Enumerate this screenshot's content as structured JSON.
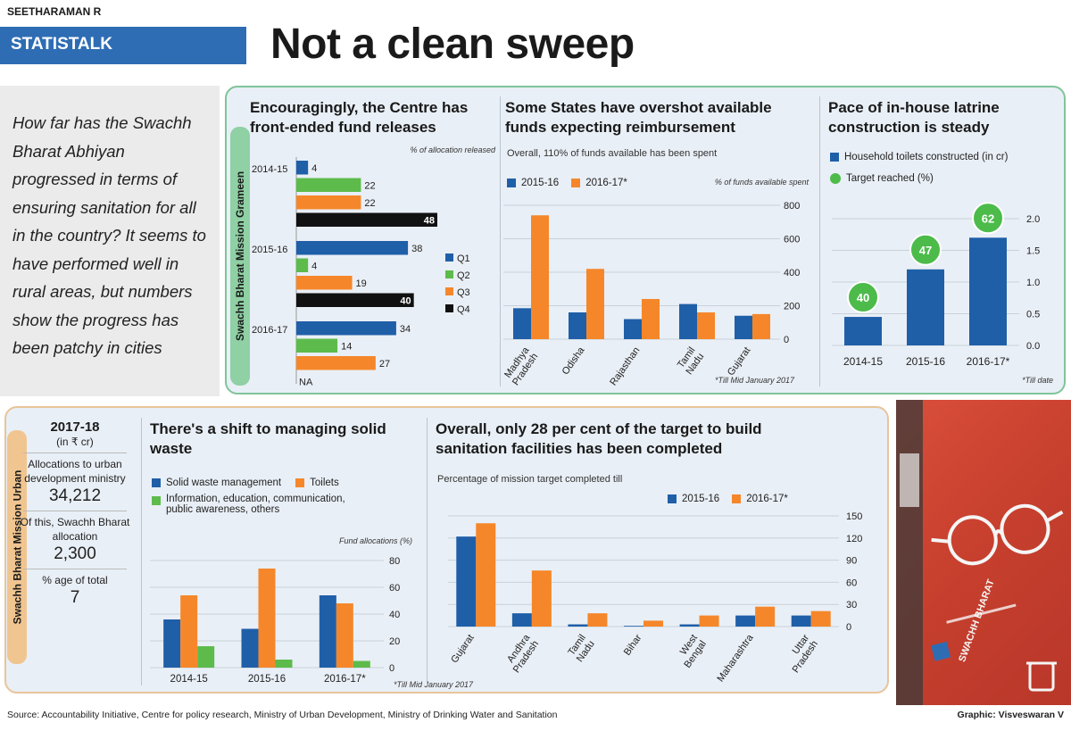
{
  "header": {
    "byline": "SEETHARAMAN R",
    "tag": "STATISTALK",
    "headline": "Not a clean sweep"
  },
  "intro": "How far has the Swachh Bharat Abhiyan progressed in terms of ensuring sanitation for all in the country? It seems to have performed well in rural areas, but numbers show the progress has been patchy in cities",
  "grameen": {
    "label": "Swachh Bharat Mission Grameen",
    "fund_releases": {
      "title": "Encouragingly, the Centre has front-ended fund releases",
      "subtitle": "% of allocation released"
    },
    "states": {
      "title": "Some States have overshot available funds expecting reimbursement",
      "subtitle": "Overall, 110% of funds available has been spent",
      "axis_note": "% of funds available spent",
      "footnote": "*Till Mid January 2017"
    },
    "latrines": {
      "title": "Pace of in-house latrine construction is steady",
      "footnote": "*Till date"
    }
  },
  "urban": {
    "label": "Swachh Bharat Mission Urban",
    "year": "2017-18",
    "unit": "(in ₹ cr)",
    "alloc_label": "Allocations to urban development ministry",
    "alloc_value": "34,212",
    "sb_label": "Of this, Swachh Bharat allocation",
    "sb_value": "2,300",
    "pct_label": "% age of total",
    "pct_value": "7",
    "solid_waste": {
      "title": "There's a shift to managing solid waste",
      "axis_note": "Fund allocations (%)",
      "footnote": "*Till Mid January 2017"
    },
    "target": {
      "title": "Overall, only 28 per cent of the target to build sanitation facilities has been completed",
      "subtitle": "Percentage of mission target completed till"
    }
  },
  "photo": {
    "text": "SWACHH BHARAT"
  },
  "footer": {
    "source": "Source: Accountability Initiative, Centre for policy research, Ministry of Urban Development, Ministry of Drinking Water and Sanitation",
    "graphic": "Graphic: Visveswaran V"
  },
  "colors": {
    "blue": "#1f5fa8",
    "green": "#5dbb4b",
    "orange": "#f5872a",
    "black": "#111111",
    "target_green": "#4cbb4a"
  },
  "chart_data": [
    {
      "type": "bar",
      "orientation": "horizontal",
      "title": "Encouragingly, the Centre has front-ended fund releases",
      "subtitle": "% of allocation released",
      "categories": [
        "2014-15",
        "2015-16",
        "2016-17"
      ],
      "series": [
        {
          "name": "Q1",
          "values": [
            4,
            38,
            34
          ],
          "labels": [
            "4",
            "38",
            "34"
          ]
        },
        {
          "name": "Q2",
          "values": [
            22,
            4,
            14
          ],
          "labels": [
            "22",
            "4",
            "14"
          ]
        },
        {
          "name": "Q3",
          "values": [
            22,
            19,
            27
          ],
          "labels": [
            "22",
            "19",
            "27"
          ]
        },
        {
          "name": "Q4",
          "values": [
            48,
            40,
            null
          ],
          "labels": [
            "48",
            "40",
            "NA"
          ]
        }
      ],
      "xlim": [
        0,
        48
      ]
    },
    {
      "type": "bar",
      "title": "Some States have overshot available funds expecting reimbursement",
      "categories": [
        "Madhya Pradesh",
        "Odisha",
        "Rajasthan",
        "Tamil Nadu",
        "Gujarat"
      ],
      "series": [
        {
          "name": "2015-16",
          "values": [
            185,
            160,
            120,
            210,
            140
          ]
        },
        {
          "name": "2016-17*",
          "values": [
            740,
            420,
            240,
            160,
            150
          ]
        }
      ],
      "ylabel": "% of funds available spent",
      "ylim": [
        0,
        800
      ],
      "yticks": [
        0,
        200,
        400,
        600,
        800
      ]
    },
    {
      "type": "bar",
      "title": "Pace of in-house latrine construction is steady",
      "categories": [
        "2014-15",
        "2015-16",
        "2016-17*"
      ],
      "series": [
        {
          "name": "Household toilets constructed (in cr)",
          "values": [
            0.45,
            1.2,
            1.7
          ]
        },
        {
          "name": "Target reached (%)",
          "values": [
            40,
            47,
            62
          ]
        }
      ],
      "ylim": [
        0,
        2.0
      ],
      "yticks": [
        "0.0",
        "0.5",
        "1.0",
        "1.5",
        "2.0"
      ]
    },
    {
      "type": "bar",
      "title": "There's a shift to managing solid waste",
      "categories": [
        "2014-15",
        "2015-16",
        "2016-17*"
      ],
      "series": [
        {
          "name": "Solid waste management",
          "values": [
            36,
            29,
            54
          ]
        },
        {
          "name": "Toilets",
          "values": [
            54,
            74,
            48
          ]
        },
        {
          "name": "Information, education, communication, public awareness, others",
          "values": [
            16,
            6,
            5
          ]
        }
      ],
      "ylabel": "Fund allocations (%)",
      "ylim": [
        0,
        80
      ],
      "yticks": [
        0,
        20,
        40,
        60,
        80
      ]
    },
    {
      "type": "bar",
      "title": "Overall, only 28 per cent of the target to build sanitation facilities has been completed",
      "categories": [
        "Gujarat",
        "Andhra Pradesh",
        "Tamil Nadu",
        "Bihar",
        "West Bengal",
        "Maharashtra",
        "Uttar Pradesh"
      ],
      "series": [
        {
          "name": "2015-16",
          "values": [
            122,
            18,
            3,
            1,
            3,
            15,
            15
          ]
        },
        {
          "name": "2016-17*",
          "values": [
            140,
            76,
            18,
            8,
            15,
            27,
            21
          ]
        }
      ],
      "ylim": [
        0,
        150
      ],
      "yticks": [
        0,
        30,
        60,
        90,
        120,
        150
      ]
    }
  ]
}
